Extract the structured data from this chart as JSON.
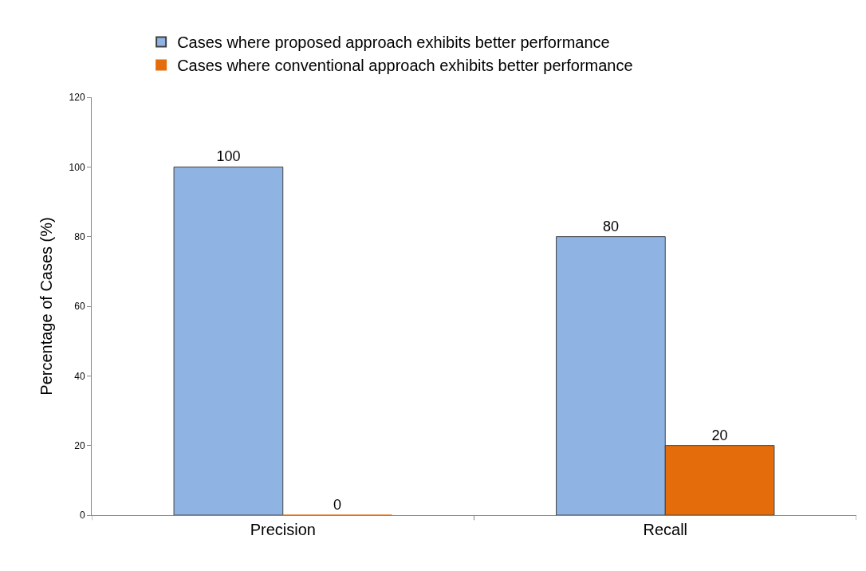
{
  "chart_data": {
    "type": "bar",
    "categories": [
      "Precision",
      "Recall"
    ],
    "ylabel": "Percentage of Cases (%)",
    "ylim": [
      0,
      120
    ],
    "yticks": [
      0,
      20,
      40,
      60,
      80,
      100,
      120
    ],
    "legend": "top",
    "data_labels": true,
    "series": [
      {
        "name": "Cases where proposed approach exhibits better performance",
        "color": "#8fb4e3",
        "values": [
          100,
          80
        ]
      },
      {
        "name": "Cases where conventional approach exhibits better performance",
        "color": "#e46c0a",
        "values": [
          0,
          20
        ]
      }
    ]
  }
}
